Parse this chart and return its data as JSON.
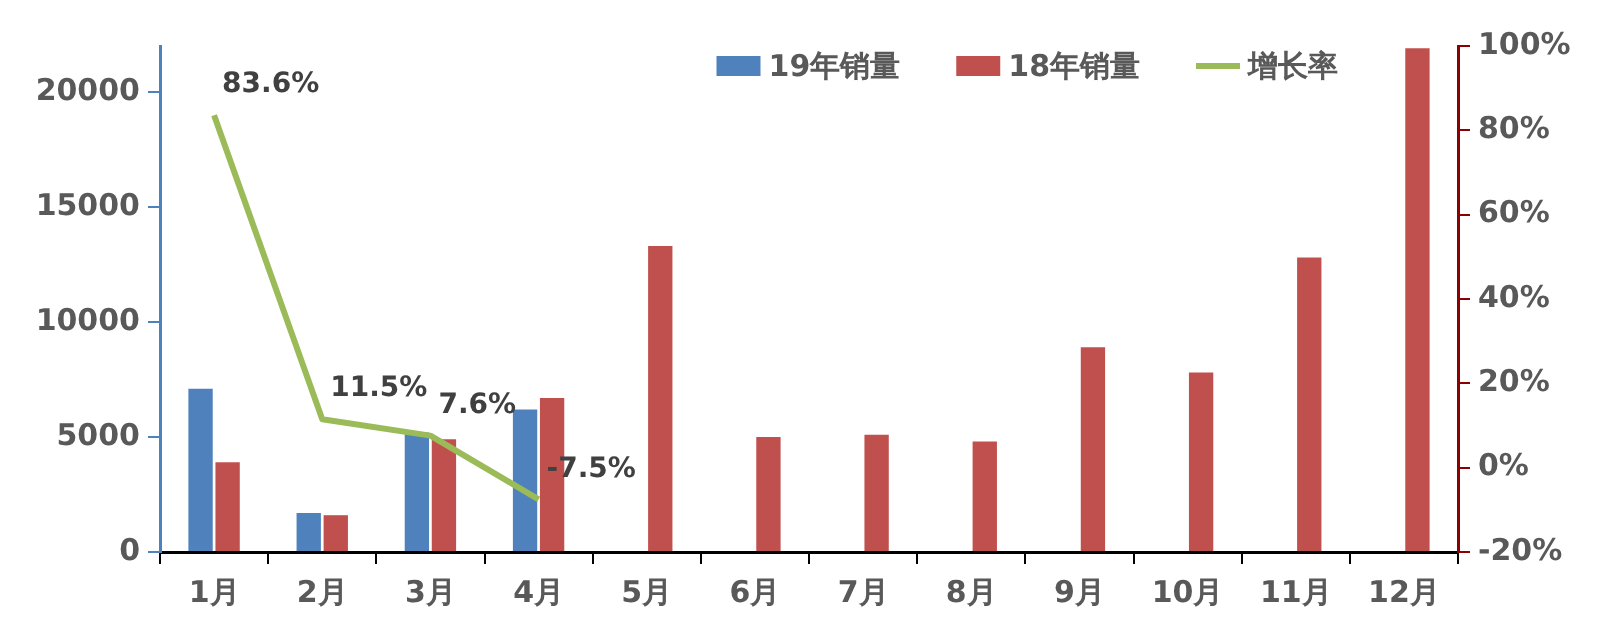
{
  "chart_data": {
    "type": "bar",
    "categories": [
      "1月",
      "2月",
      "3月",
      "4月",
      "5月",
      "6月",
      "7月",
      "8月",
      "9月",
      "10月",
      "11月",
      "12月"
    ],
    "series": [
      {
        "name": "19年销量",
        "color": "#4f81bd",
        "values": [
          7100,
          1700,
          5200,
          6200,
          null,
          null,
          null,
          null,
          null,
          null,
          null,
          null
        ]
      },
      {
        "name": "18年销量",
        "color": "#c0504d",
        "values": [
          3900,
          1600,
          4900,
          6700,
          13300,
          5000,
          5100,
          4800,
          8900,
          7800,
          12800,
          21900
        ]
      },
      {
        "name": "增长率",
        "type": "line",
        "axis": "y2",
        "color": "#9bbb59",
        "values": [
          83.6,
          11.5,
          7.6,
          -7.5,
          null,
          null,
          null,
          null,
          null,
          null,
          null,
          null
        ],
        "value_labels": [
          "83.6%",
          "11.5%",
          "7.6%",
          "-7.5%",
          null,
          null,
          null,
          null,
          null,
          null,
          null,
          null
        ]
      }
    ],
    "ylim": [
      0,
      22000
    ],
    "yticks": [
      0,
      5000,
      10000,
      15000,
      20000
    ],
    "y2lim": [
      -20,
      100
    ],
    "y2ticks": [
      {
        "value": -20,
        "label": "-20%"
      },
      {
        "value": 0,
        "label": "0%"
      },
      {
        "value": 20,
        "label": "20%"
      },
      {
        "value": 40,
        "label": "40%"
      },
      {
        "value": 60,
        "label": "60%"
      },
      {
        "value": 80,
        "label": "80%"
      },
      {
        "value": 100,
        "label": "100%"
      }
    ],
    "legend": "top right",
    "grid": false,
    "marker": "none"
  }
}
